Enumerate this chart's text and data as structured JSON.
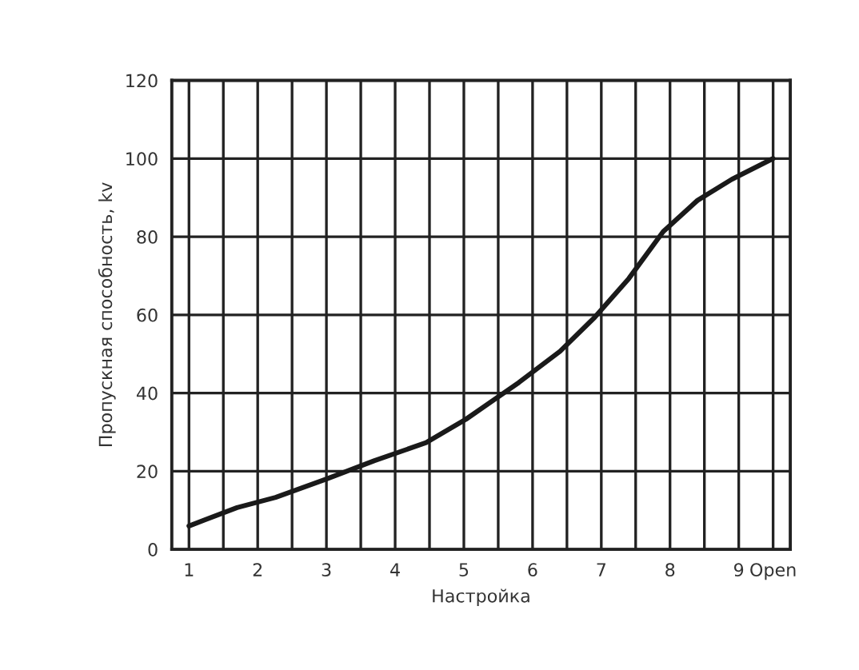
{
  "chart_data": {
    "type": "line",
    "xlabel": "Настройка",
    "ylabel": "Пропускная способность, kv",
    "x": [
      1,
      1.7,
      2.26,
      3,
      3.7,
      4.45,
      5.03,
      5.8,
      6.4,
      6.9,
      7.4,
      7.9,
      8.4,
      8.9,
      9.5
    ],
    "series": [
      {
        "color": "#1a1a1a",
        "values": [
          6,
          10.7,
          13.3,
          18,
          22.7,
          27.3,
          33.3,
          42.7,
          50.7,
          59.3,
          69.3,
          81.3,
          89.3,
          94.7,
          100
        ]
      }
    ],
    "xlim": [
      0.75,
      9.75
    ],
    "xticks": [
      1,
      {
        "value": 1.5,
        "label": null
      },
      2,
      {
        "value": 2.5,
        "label": null
      },
      3,
      {
        "value": 3.5,
        "label": null
      },
      4,
      {
        "value": 4.5,
        "label": null
      },
      5,
      {
        "value": 5.5,
        "label": null
      },
      6,
      {
        "value": 6.5,
        "label": null
      },
      7,
      {
        "value": 7.5,
        "label": null
      },
      8,
      {
        "value": 8.5,
        "label": null
      },
      9,
      {
        "value": 9.5,
        "label": "Open"
      }
    ],
    "ylim": [
      0,
      120
    ],
    "yticks": [
      0,
      20,
      40,
      60,
      80,
      100,
      120
    ],
    "grid": true,
    "line_style": "solid",
    "marker": "none"
  }
}
